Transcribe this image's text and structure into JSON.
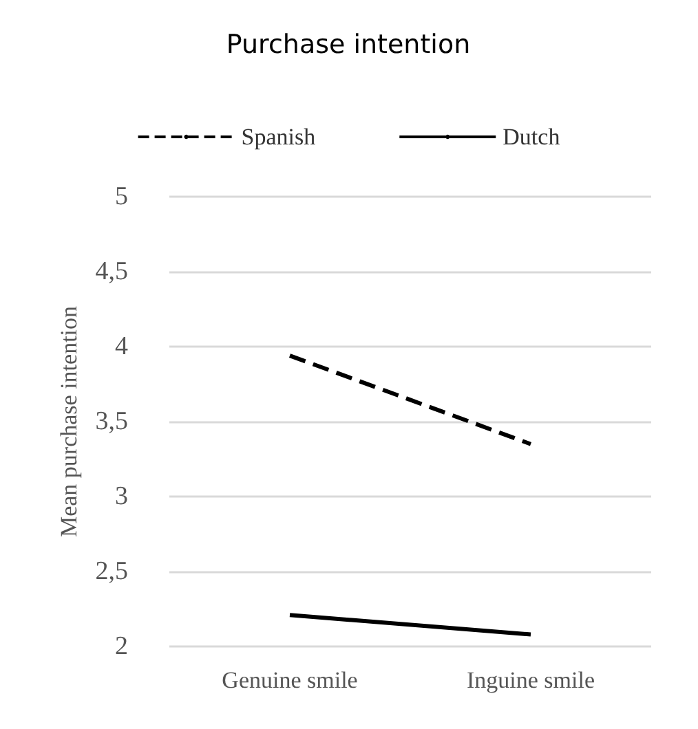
{
  "chart_data": {
    "type": "line",
    "title": "Purchase intention",
    "ylabel": "Mean purchase intention",
    "categories": [
      "Genuine smile",
      "Inguine smile"
    ],
    "series": [
      {
        "name": "Spanish",
        "color": "#000000",
        "line_style": "dashed",
        "values": [
          3.94,
          3.35
        ]
      },
      {
        "name": "Dutch",
        "color": "#000000",
        "line_style": "solid",
        "values": [
          2.21,
          2.08
        ]
      }
    ],
    "ylim": [
      2,
      5
    ],
    "yticks": [
      2,
      {
        "value": 2.5,
        "label": "2,5"
      },
      3,
      {
        "value": 3.5,
        "label": "3,5"
      },
      4,
      {
        "value": 4.5,
        "label": "4,5"
      },
      5
    ],
    "grid": "y",
    "legend": "top",
    "marker": "none"
  }
}
